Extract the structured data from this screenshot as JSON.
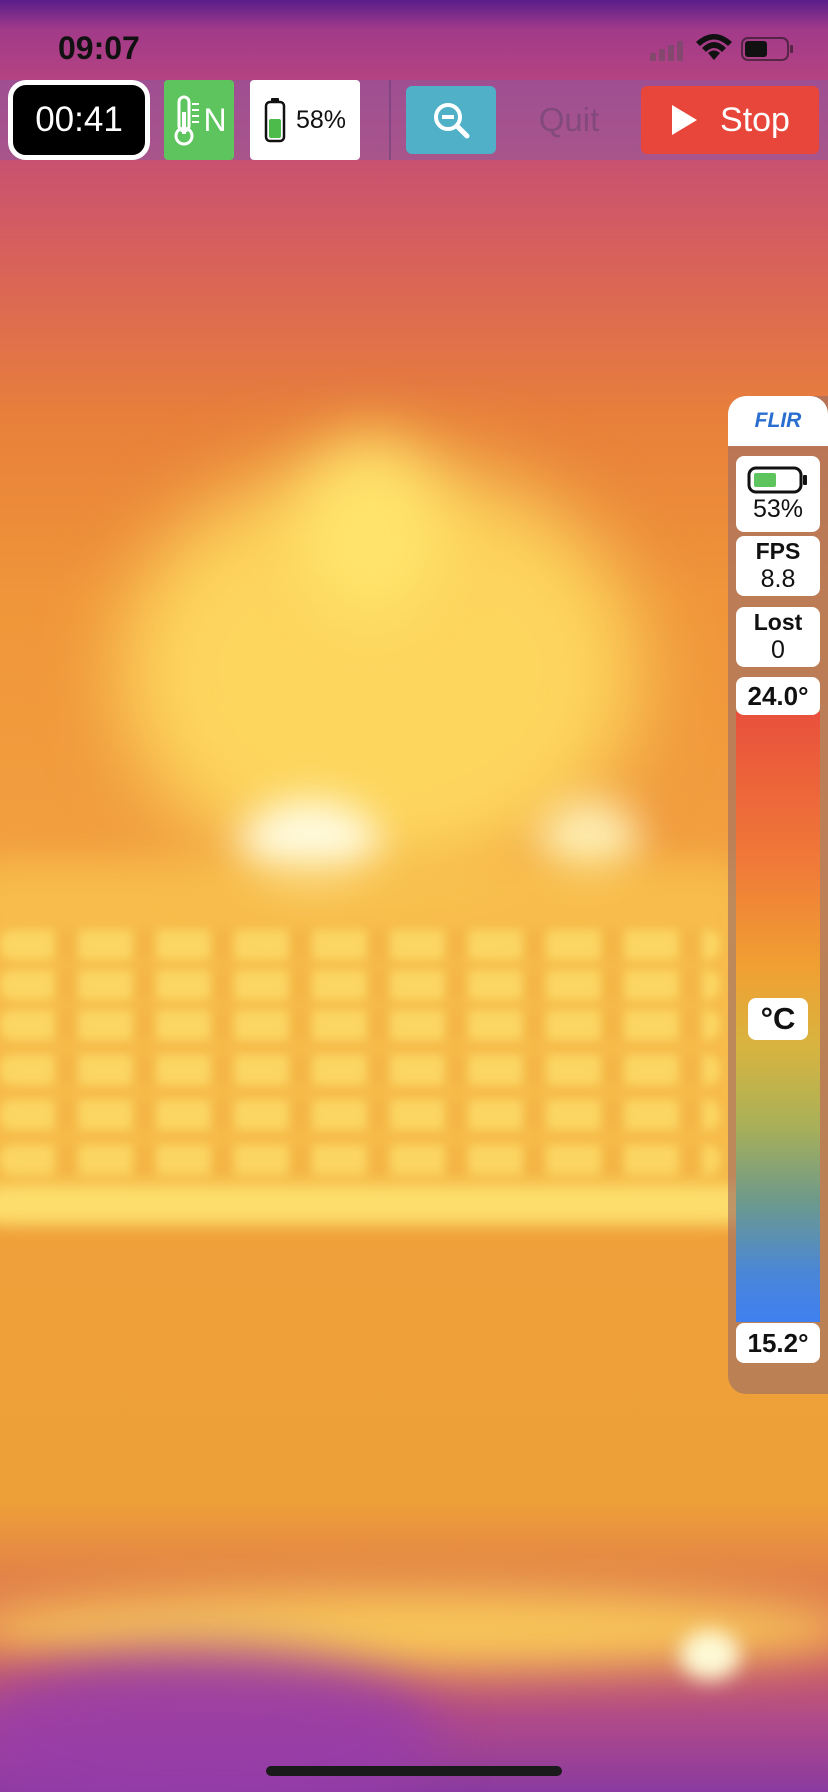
{
  "status_bar": {
    "time": "09:07"
  },
  "toolbar": {
    "timer": "00:41",
    "temp_mode_letter": "N",
    "phone_battery": "58%",
    "quit_label": "Quit",
    "stop_label": "Stop"
  },
  "flir_panel": {
    "brand": "FLIR",
    "camera_battery": "53%",
    "fps_label": "FPS",
    "fps_value": "8.8",
    "lost_label": "Lost",
    "lost_value": "0",
    "scale_max": "24.0°",
    "scale_unit": "°C",
    "scale_min": "15.2°"
  },
  "colors": {
    "timer_bg": "#000000",
    "temp_mode_bg": "#5ec45e",
    "zoom_bg": "#4fb0c8",
    "stop_bg": "#e8463a",
    "flir_brand": "#2a6fcf"
  },
  "icons": [
    "signal-icon",
    "wifi-icon",
    "status-battery-icon",
    "thermometer-icon",
    "phone-battery-icon",
    "zoom-out-icon",
    "play-icon",
    "camera-battery-icon"
  ]
}
